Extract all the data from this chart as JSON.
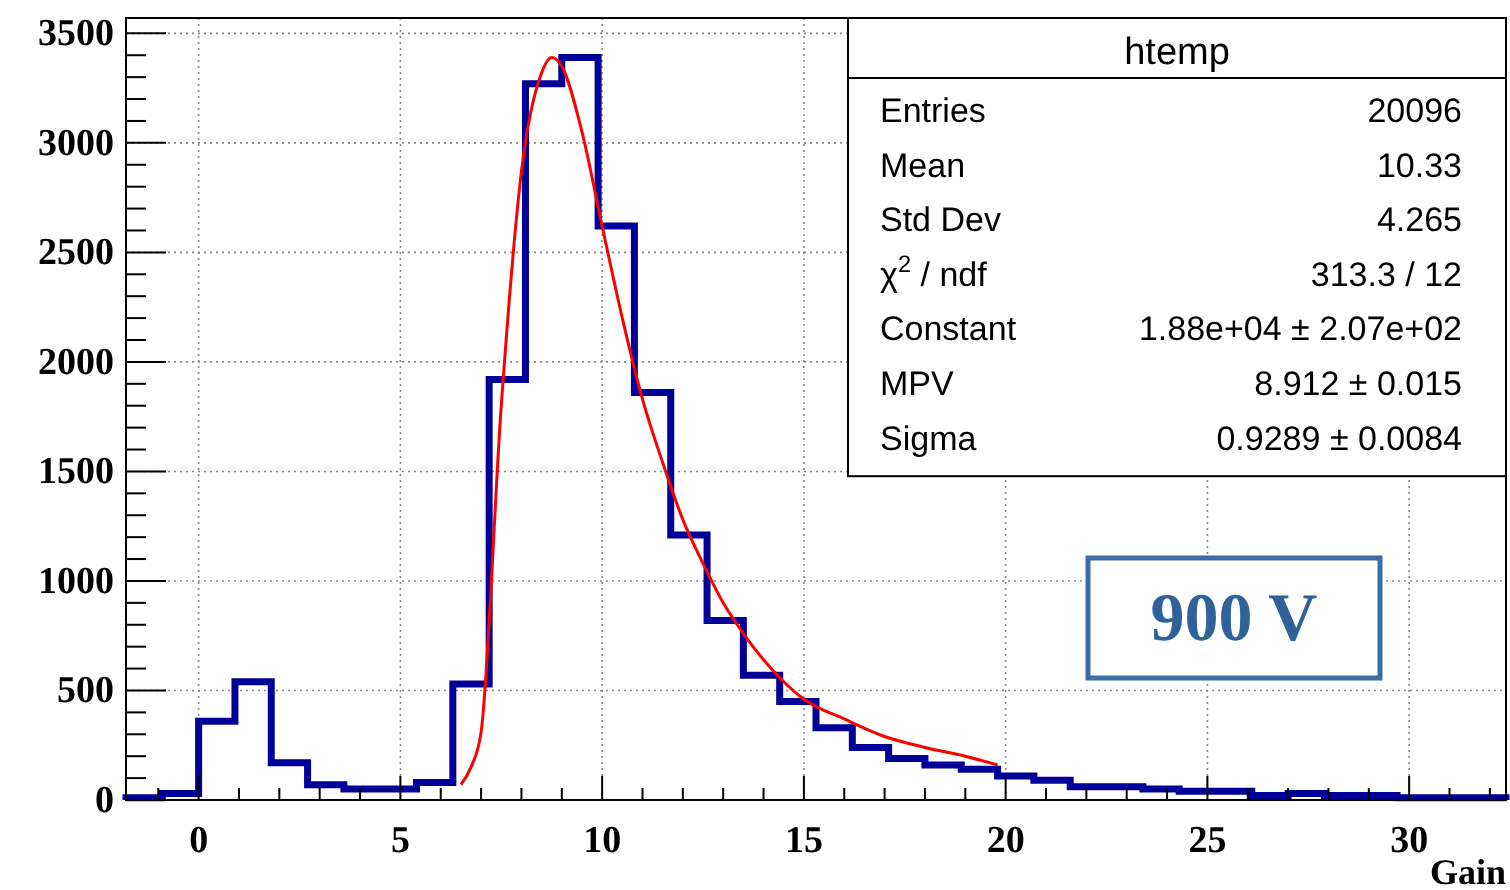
{
  "chart_data": {
    "type": "histogram",
    "xlabel": "Gain",
    "grid": true,
    "xlim": [
      -1.8,
      32.4
    ],
    "ylim": [
      0,
      3570
    ],
    "xticks": [
      {
        "value": -1,
        "label": null
      },
      0,
      {
        "value": 1,
        "label": null
      },
      {
        "value": 2,
        "label": null
      },
      {
        "value": 3,
        "label": null
      },
      {
        "value": 4,
        "label": null
      },
      5,
      {
        "value": 6,
        "label": null
      },
      {
        "value": 7,
        "label": null
      },
      {
        "value": 8,
        "label": null
      },
      {
        "value": 9,
        "label": null
      },
      10,
      {
        "value": 11,
        "label": null
      },
      {
        "value": 12,
        "label": null
      },
      {
        "value": 13,
        "label": null
      },
      {
        "value": 14,
        "label": null
      },
      15,
      {
        "value": 16,
        "label": null
      },
      {
        "value": 17,
        "label": null
      },
      {
        "value": 18,
        "label": null
      },
      {
        "value": 19,
        "label": null
      },
      20,
      {
        "value": 21,
        "label": null
      },
      {
        "value": 22,
        "label": null
      },
      {
        "value": 23,
        "label": null
      },
      {
        "value": 24,
        "label": null
      },
      25,
      {
        "value": 26,
        "label": null
      },
      {
        "value": 27,
        "label": null
      },
      {
        "value": 28,
        "label": null
      },
      {
        "value": 29,
        "label": null
      },
      30,
      {
        "value": 31,
        "label": null
      },
      {
        "value": 32,
        "label": null
      }
    ],
    "yticks": [
      0,
      {
        "value": 100,
        "label": null
      },
      {
        "value": 200,
        "label": null
      },
      {
        "value": 300,
        "label": null
      },
      {
        "value": 400,
        "label": null
      },
      500,
      {
        "value": 600,
        "label": null
      },
      {
        "value": 700,
        "label": null
      },
      {
        "value": 800,
        "label": null
      },
      {
        "value": 900,
        "label": null
      },
      1000,
      {
        "value": 1100,
        "label": null
      },
      {
        "value": 1200,
        "label": null
      },
      {
        "value": 1300,
        "label": null
      },
      {
        "value": 1400,
        "label": null
      },
      1500,
      {
        "value": 1600,
        "label": null
      },
      {
        "value": 1700,
        "label": null
      },
      {
        "value": 1800,
        "label": null
      },
      {
        "value": 1900,
        "label": null
      },
      2000,
      {
        "value": 2100,
        "label": null
      },
      {
        "value": 2200,
        "label": null
      },
      {
        "value": 2300,
        "label": null
      },
      {
        "value": 2400,
        "label": null
      },
      2500,
      {
        "value": 2600,
        "label": null
      },
      {
        "value": 2700,
        "label": null
      },
      {
        "value": 2800,
        "label": null
      },
      {
        "value": 2900,
        "label": null
      },
      3000,
      {
        "value": 3100,
        "label": null
      },
      {
        "value": 3200,
        "label": null
      },
      {
        "value": 3300,
        "label": null
      },
      {
        "value": 3400,
        "label": null
      },
      3500
    ],
    "bins": [
      -1.8,
      -0.9,
      0,
      0.9,
      1.8,
      2.7,
      3.6,
      4.5,
      5.4,
      6.3,
      7.2,
      8.1,
      9.0,
      9.9,
      10.8,
      11.7,
      12.6,
      13.5,
      14.4,
      15.3,
      16.2,
      17.1,
      18.0,
      18.9,
      19.8,
      20.7,
      21.6,
      22.5,
      23.4,
      24.3,
      25.2,
      26.1,
      27.0,
      27.9,
      28.8,
      29.7,
      30.6,
      31.5,
      32.4
    ],
    "series": [
      {
        "color": "#000099",
        "values": [
          10,
          30,
          360,
          540,
          170,
          70,
          50,
          50,
          80,
          530,
          1920,
          3270,
          3390,
          2620,
          1860,
          1210,
          820,
          570,
          450,
          330,
          240,
          190,
          160,
          140,
          110,
          90,
          60,
          60,
          50,
          40,
          40,
          20,
          30,
          20,
          20,
          10,
          10,
          10
        ]
      },
      {
        "type": "line",
        "color": "#ff0000",
        "x": [
          6.5,
          6.75,
          7,
          7.5,
          8,
          8.5,
          8.75,
          9,
          9.5,
          10,
          10.5,
          11,
          11.5,
          12,
          12.5,
          13,
          13.5,
          14,
          14.5,
          15,
          16,
          17,
          18,
          19,
          19.8
        ],
        "values": [
          70,
          150,
          310,
          1800,
          2870,
          3320,
          3390,
          3350,
          3050,
          2620,
          2200,
          1830,
          1540,
          1280,
          1080,
          900,
          760,
          640,
          540,
          460,
          370,
          290,
          240,
          200,
          160
        ]
      }
    ],
    "annotations": [
      "htemp",
      "Entries",
      "20096",
      "Mean",
      "10.33",
      "Std Dev",
      "4.265",
      "χ$^{2}$ / ndf",
      "313.3 / 12",
      "Constant",
      "1.88e+04 ± 2.07e+02",
      "MPV",
      "8.912 ± 0.015",
      "Sigma",
      "0.9289 ± 0.0084",
      "900 V"
    ]
  }
}
